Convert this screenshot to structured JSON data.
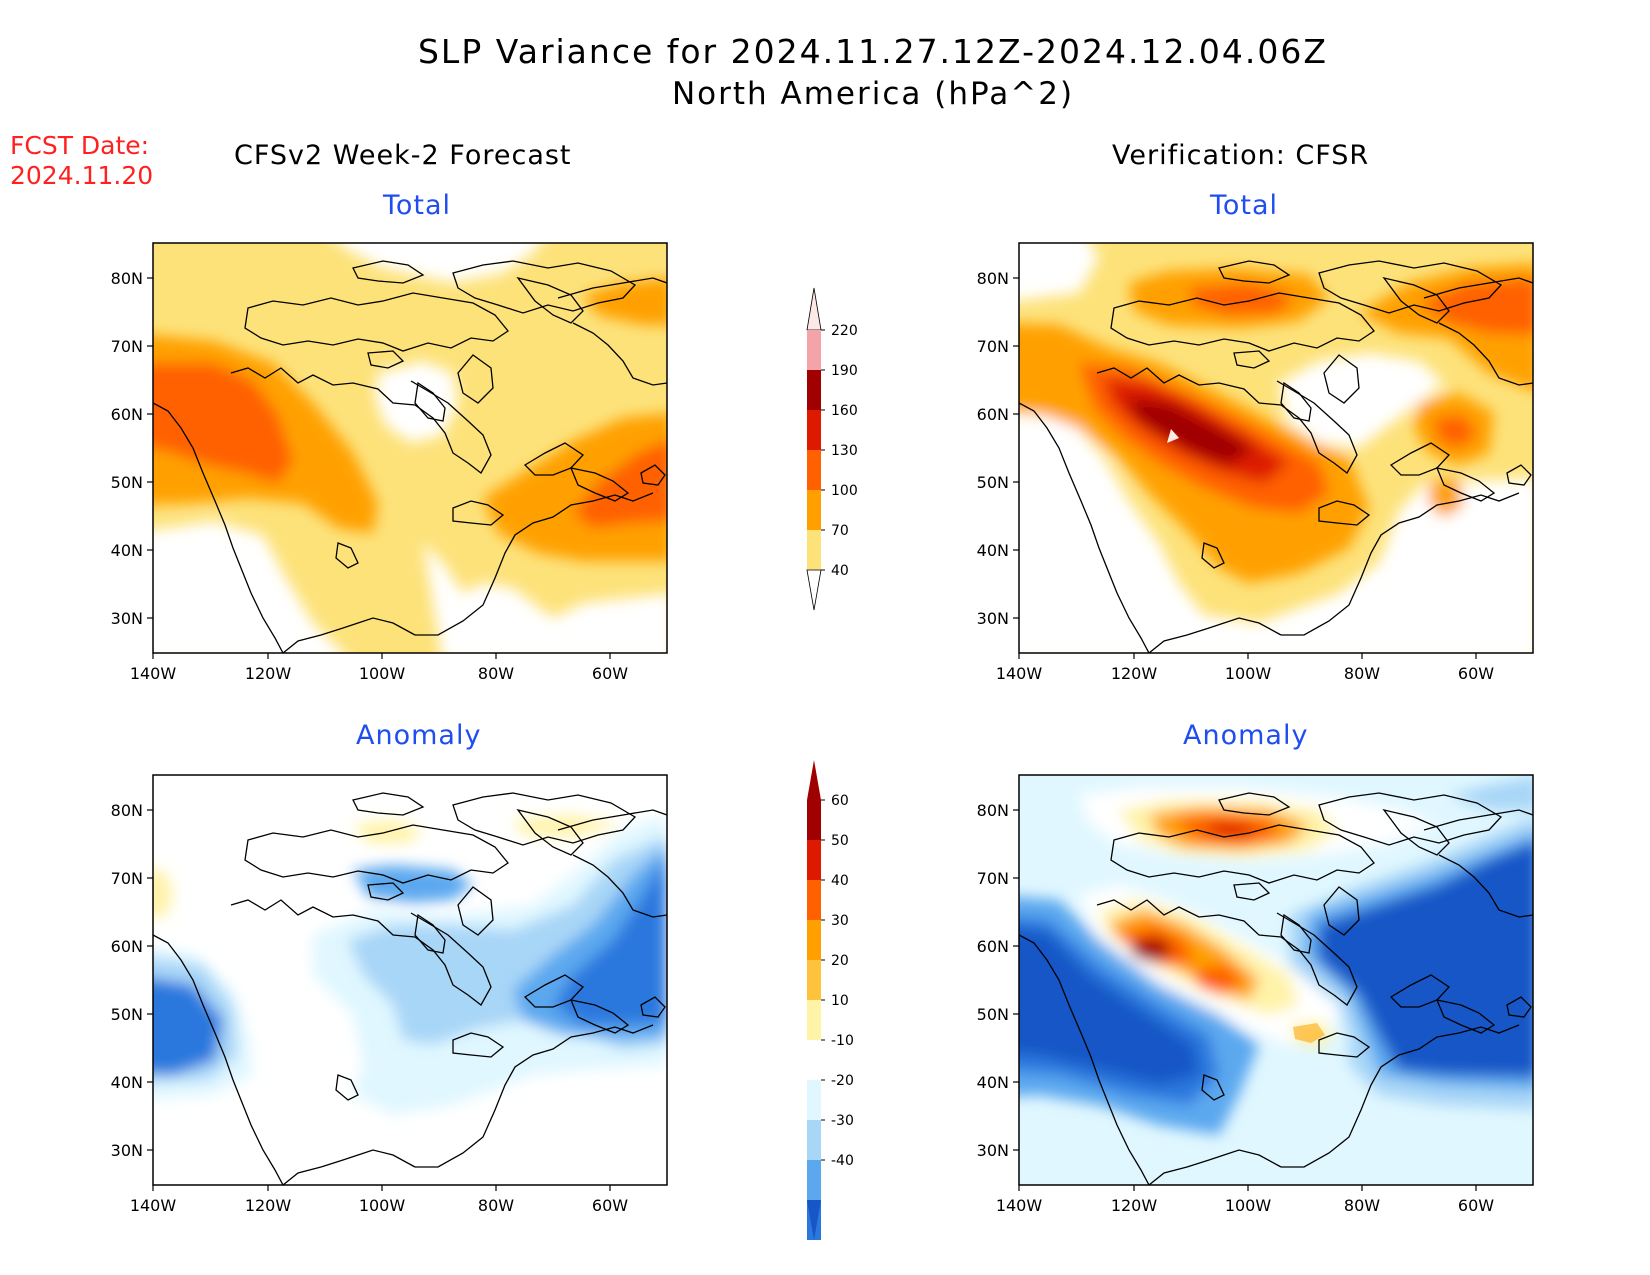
{
  "title": {
    "line1": "SLP Variance for 2024.11.27.12Z-2024.12.04.06Z",
    "line2": "North America (hPa^2)"
  },
  "forecast_date": {
    "label": "FCST Date:",
    "value": "2024.11.20"
  },
  "columns": {
    "left": "CFSv2 Week-2 Forecast",
    "right": "Verification: CFSR"
  },
  "panel_titles": {
    "total": "Total",
    "anomaly": "Anomaly"
  },
  "axes": {
    "lat_labels": [
      "80N",
      "70N",
      "60N",
      "50N",
      "40N",
      "30N"
    ],
    "lon_labels": [
      "140W",
      "120W",
      "100W",
      "80W",
      "60W"
    ]
  },
  "colorbars": {
    "total": {
      "levels": [
        "220",
        "190",
        "160",
        "130",
        "100",
        "70",
        "40"
      ],
      "colors": [
        "#fde8e8",
        "#f4a3a8",
        "#a00000",
        "#dd1a00",
        "#ff6000",
        "#ffa000",
        "#fde27a"
      ]
    },
    "anomaly": {
      "levels": [
        "60",
        "50",
        "40",
        "30",
        "20",
        "10",
        "-10",
        "-20",
        "-30",
        "-40"
      ],
      "colors": [
        "#a00000",
        "#dd1a00",
        "#ff6000",
        "#ffa000",
        "#ffc23c",
        "#fff3a8",
        "#ffffff",
        "#e0f7ff",
        "#a8d6f7",
        "#5ca8ef",
        "#2a78de",
        "#1756c6"
      ]
    }
  }
}
